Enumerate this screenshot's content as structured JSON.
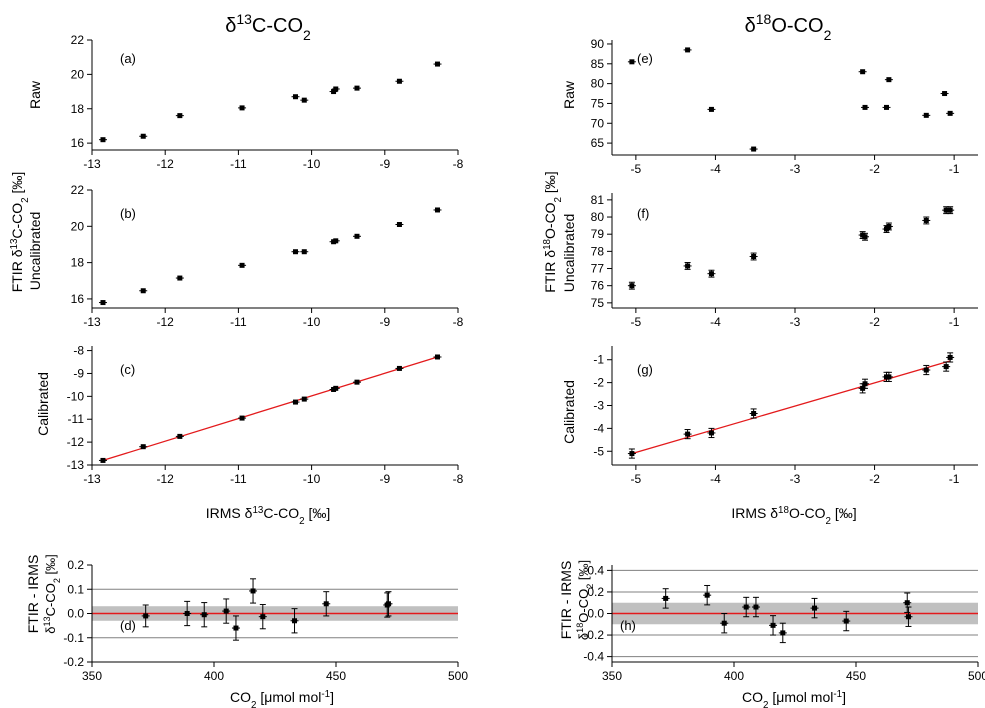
{
  "columns": [
    {
      "title_html": "δ<tspan baseline-shift=\"super\" font-size=\"14\">13</tspan>C-CO<tspan baseline-shift=\"sub\" font-size=\"14\">2</tspan>",
      "title_text": "δ13C-CO2"
    },
    {
      "title_html": "δ<tspan baseline-shift=\"super\" font-size=\"14\">18</tspan>O-CO<tspan baseline-shift=\"sub\" font-size=\"14\">2</tspan>",
      "title_text": "δ18O-CO2"
    }
  ],
  "row_labels": {
    "raw": "Raw",
    "uncalibrated": "Uncalibrated",
    "calibrated": "Calibrated",
    "fit_check": "FTIR - IRMS"
  },
  "ylabel_13c_ftir": "FTIR δ13C-CO2 [‰]",
  "ylabel_18o_ftir": "FTIR δ18O-CO2 [‰]",
  "ylabel_13c_diff": "δ13C-CO2 [‰]",
  "ylabel_18o_diff": "δ18O-CO2 [‰]",
  "xlabel_13c_irms": "IRMS δ13C-CO2 [‰]",
  "xlabel_18o_irms": "IRMS δ18O-CO2 [‰]",
  "xlabel_co2": "CO2 [μmol mol-1]",
  "colors": {
    "fit_line": "#e31a1c",
    "band": "#c0c0c0",
    "grid": "#808080",
    "marker": "#000000"
  },
  "chart_data": [
    {
      "id": "a",
      "type": "scatter",
      "panel_label": "(a)",
      "ylabel": "Raw",
      "xlim": [
        -13,
        -8
      ],
      "ylim": [
        15.6,
        22
      ],
      "xticks": [
        -13,
        -12,
        -11,
        -10,
        -9,
        -8
      ],
      "yticks": [
        16,
        18,
        20,
        22
      ],
      "x": [
        -12.85,
        -12.3,
        -11.8,
        -10.95,
        -10.22,
        -10.1,
        -9.7,
        -9.67,
        -9.38,
        -8.8,
        -8.28
      ],
      "y": [
        16.2,
        16.4,
        17.6,
        18.05,
        18.7,
        18.5,
        19.0,
        19.15,
        19.2,
        19.6,
        20.6
      ]
    },
    {
      "id": "b",
      "type": "scatter",
      "panel_label": "(b)",
      "ylabel": "Uncalibrated",
      "xlim": [
        -13,
        -8
      ],
      "ylim": [
        15.5,
        22
      ],
      "xticks": [
        -13,
        -12,
        -11,
        -10,
        -9,
        -8
      ],
      "yticks": [
        16,
        18,
        20,
        22
      ],
      "x": [
        -12.85,
        -12.3,
        -11.8,
        -10.95,
        -10.22,
        -10.1,
        -9.7,
        -9.67,
        -9.38,
        -8.8,
        -8.28
      ],
      "y": [
        15.8,
        16.45,
        17.15,
        17.85,
        18.6,
        18.6,
        19.15,
        19.2,
        19.45,
        20.1,
        20.9
      ]
    },
    {
      "id": "c",
      "type": "scatter",
      "panel_label": "(c)",
      "ylabel": "Calibrated",
      "xlim": [
        -13,
        -8
      ],
      "ylim": [
        -13,
        -7.8
      ],
      "xticks": [
        -13,
        -12,
        -11,
        -10,
        -9,
        -8
      ],
      "yticks": [
        -13,
        -12,
        -11,
        -10,
        -9,
        -8
      ],
      "x": [
        -12.85,
        -12.3,
        -11.8,
        -10.95,
        -10.22,
        -10.1,
        -9.7,
        -9.67,
        -9.38,
        -8.8,
        -8.28
      ],
      "y": [
        -12.8,
        -12.2,
        -11.75,
        -10.95,
        -10.25,
        -10.12,
        -9.7,
        -9.65,
        -9.38,
        -8.78,
        -8.28
      ],
      "fit_line": [
        [
          -12.85,
          -12.8
        ],
        [
          -8.28,
          -8.28
        ]
      ]
    },
    {
      "id": "d",
      "type": "scatter",
      "panel_label": "(d)",
      "ylabel": "FTIR - IRMS",
      "xlim": [
        350,
        500
      ],
      "ylim": [
        -0.2,
        0.2
      ],
      "xticks": [
        350,
        400,
        450,
        500
      ],
      "yticks": [
        -0.2,
        -0.1,
        0.0,
        0.1,
        0.2
      ],
      "hlines": [
        -0.1,
        0.1
      ],
      "band": [
        -0.03,
        0.03
      ],
      "zero_line": 0,
      "x": [
        372,
        389,
        396,
        405,
        409,
        416,
        420,
        433,
        446,
        471,
        471.5
      ],
      "y": [
        -0.01,
        0.0,
        -0.005,
        0.01,
        -0.06,
        0.093,
        -0.013,
        -0.03,
        0.04,
        0.035,
        0.04
      ],
      "yerr": [
        0.045,
        0.05,
        0.05,
        0.05,
        0.05,
        0.05,
        0.05,
        0.05,
        0.05,
        0.05,
        0.05
      ]
    },
    {
      "id": "e",
      "type": "scatter",
      "panel_label": "(e)",
      "ylabel": "Raw",
      "xlim": [
        -5.3,
        -0.7
      ],
      "ylim": [
        62,
        91
      ],
      "xticks": [
        -5,
        -4,
        -3,
        -2,
        -1
      ],
      "yticks": [
        65,
        70,
        75,
        80,
        85,
        90
      ],
      "x": [
        -5.05,
        -4.35,
        -4.05,
        -3.52,
        -2.15,
        -2.12,
        -1.85,
        -1.82,
        -1.35,
        -1.12,
        -1.05
      ],
      "y": [
        85.5,
        88.5,
        73.5,
        63.5,
        83.0,
        74.0,
        74.0,
        81.0,
        72.0,
        77.5,
        72.5
      ]
    },
    {
      "id": "f",
      "type": "scatter",
      "panel_label": "(f)",
      "ylabel": "Uncalibrated",
      "xlim": [
        -5.3,
        -0.7
      ],
      "ylim": [
        74.7,
        81.4
      ],
      "xticks": [
        -5,
        -4,
        -3,
        -2,
        -1
      ],
      "yticks": [
        75,
        76,
        77,
        78,
        79,
        80,
        81
      ],
      "x": [
        -5.05,
        -4.35,
        -4.05,
        -3.52,
        -2.15,
        -2.12,
        -1.85,
        -1.82,
        -1.35,
        -1.1,
        -1.05
      ],
      "y": [
        76.0,
        77.15,
        76.7,
        77.7,
        78.95,
        78.85,
        79.3,
        79.45,
        79.8,
        80.4,
        80.4
      ],
      "yerr": [
        0.2,
        0.2,
        0.2,
        0.2,
        0.2,
        0.2,
        0.2,
        0.2,
        0.2,
        0.2,
        0.2
      ]
    },
    {
      "id": "g",
      "type": "scatter",
      "panel_label": "(g)",
      "ylabel": "Calibrated",
      "xlim": [
        -5.3,
        -0.7
      ],
      "ylim": [
        -5.6,
        -0.4
      ],
      "xticks": [
        -5,
        -4,
        -3,
        -2,
        -1
      ],
      "yticks": [
        -5,
        -4,
        -3,
        -2,
        -1
      ],
      "x": [
        -5.05,
        -4.35,
        -4.05,
        -3.52,
        -2.15,
        -2.12,
        -1.85,
        -1.82,
        -1.35,
        -1.1,
        -1.05
      ],
      "y": [
        -5.1,
        -4.25,
        -4.2,
        -3.35,
        -2.25,
        -2.05,
        -1.75,
        -1.75,
        -1.45,
        -1.3,
        -0.9
      ],
      "yerr": [
        0.2,
        0.2,
        0.2,
        0.2,
        0.2,
        0.2,
        0.2,
        0.2,
        0.2,
        0.2,
        0.2
      ],
      "fit_line": [
        [
          -5.05,
          -5.1
        ],
        [
          -1.05,
          -1.05
        ]
      ]
    },
    {
      "id": "h",
      "type": "scatter",
      "panel_label": "(h)",
      "ylabel": "FTIR - IRMS",
      "xlim": [
        350,
        500
      ],
      "ylim": [
        -0.45,
        0.45
      ],
      "xticks": [
        350,
        400,
        450,
        500
      ],
      "yticks": [
        -0.4,
        -0.2,
        0.0,
        0.2,
        0.4
      ],
      "hlines": [
        -0.4,
        -0.2,
        0.2,
        0.4
      ],
      "band": [
        -0.1,
        0.1
      ],
      "zero_line": 0,
      "x": [
        372,
        389,
        396,
        405,
        409,
        416,
        420,
        433,
        446,
        471,
        471.5
      ],
      "y": [
        0.14,
        0.17,
        -0.09,
        0.06,
        0.06,
        -0.11,
        -0.18,
        0.05,
        -0.07,
        0.1,
        -0.03
      ],
      "yerr": [
        0.09,
        0.09,
        0.09,
        0.09,
        0.09,
        0.09,
        0.09,
        0.09,
        0.09,
        0.09,
        0.09
      ]
    }
  ]
}
